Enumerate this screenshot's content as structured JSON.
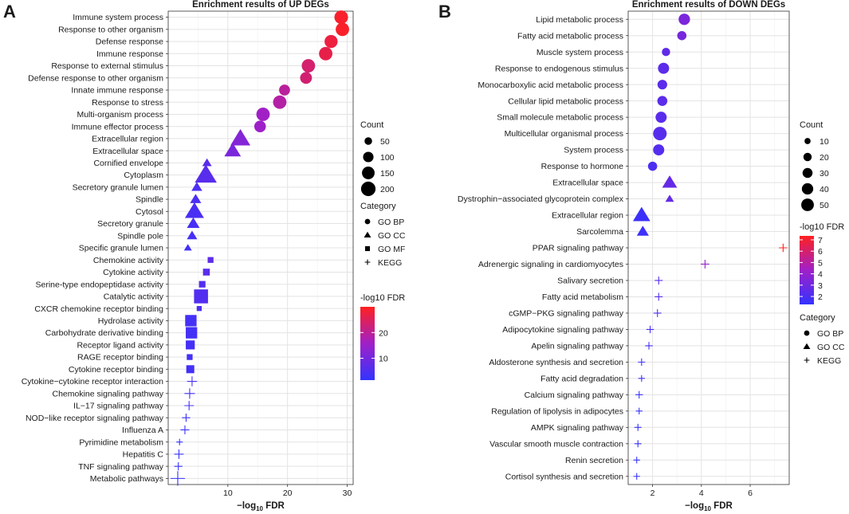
{
  "chart_data": [
    {
      "type": "scatter",
      "panel_label": "A",
      "title": "Enrichment results of UP DEGs",
      "xlabel": "-log10 FDR",
      "xlabel_parts": {
        "prefix": "−log",
        "subscript": "10",
        "suffix": " FDR"
      },
      "xlim": [
        0,
        31
      ],
      "xticks": [
        10,
        20,
        30
      ],
      "xtick_labels": [
        "10",
        "20",
        "30"
      ],
      "categories": [
        {
          "term": "Immune system process",
          "category": "GO BP",
          "x": 29.0,
          "count": 175
        },
        {
          "term": "Response to other organism",
          "category": "GO BP",
          "x": 29.2,
          "count": 170
        },
        {
          "term": "Defense response",
          "category": "GO BP",
          "x": 27.3,
          "count": 160
        },
        {
          "term": "Immune response",
          "category": "GO BP",
          "x": 26.4,
          "count": 170
        },
        {
          "term": "Response to external stimulus",
          "category": "GO BP",
          "x": 23.5,
          "count": 170
        },
        {
          "term": "Defense response to other organism",
          "category": "GO BP",
          "x": 23.1,
          "count": 130
        },
        {
          "term": "Innate immune response",
          "category": "GO BP",
          "x": 19.5,
          "count": 110
        },
        {
          "term": "Response to stress",
          "category": "GO BP",
          "x": 18.7,
          "count": 170
        },
        {
          "term": "Multi-organism process",
          "category": "GO BP",
          "x": 15.9,
          "count": 170
        },
        {
          "term": "Immune effector process",
          "category": "GO BP",
          "x": 15.4,
          "count": 125
        },
        {
          "term": "Extracellular region",
          "category": "GO CC",
          "x": 12.1,
          "count": 220
        },
        {
          "term": "Extracellular space",
          "category": "GO CC",
          "x": 10.8,
          "count": 150
        },
        {
          "term": "Cornified envelope",
          "category": "GO CC",
          "x": 6.5,
          "count": 45
        },
        {
          "term": "Cytoplasm",
          "category": "GO CC",
          "x": 6.3,
          "count": 270
        },
        {
          "term": "Secretory granule lumen",
          "category": "GO CC",
          "x": 4.8,
          "count": 60
        },
        {
          "term": "Spindle",
          "category": "GO CC",
          "x": 4.6,
          "count": 65
        },
        {
          "term": "Cytosol",
          "category": "GO CC",
          "x": 4.4,
          "count": 200
        },
        {
          "term": "Secretory granule",
          "category": "GO CC",
          "x": 4.2,
          "count": 85
        },
        {
          "term": "Spindle pole",
          "category": "GO CC",
          "x": 4.0,
          "count": 55
        },
        {
          "term": "Specific granule lumen",
          "category": "GO CC",
          "x": 3.3,
          "count": 30
        },
        {
          "term": "Chemokine activity",
          "category": "GO MF",
          "x": 7.1,
          "count": 35
        },
        {
          "term": "Cytokine activity",
          "category": "GO MF",
          "x": 6.4,
          "count": 50
        },
        {
          "term": "Serine-type endopeptidase activity",
          "category": "GO MF",
          "x": 5.7,
          "count": 45
        },
        {
          "term": "Catalytic activity",
          "category": "GO MF",
          "x": 5.5,
          "count": 230
        },
        {
          "term": "CXCR chemokine receptor binding",
          "category": "GO MF",
          "x": 5.2,
          "count": 25
        },
        {
          "term": "Hydrolase activity",
          "category": "GO MF",
          "x": 3.8,
          "count": 150
        },
        {
          "term": "Carbohydrate derivative binding",
          "category": "GO MF",
          "x": 3.9,
          "count": 150
        },
        {
          "term": "Receptor ligand activity",
          "category": "GO MF",
          "x": 3.7,
          "count": 90
        },
        {
          "term": "RAGE receptor binding",
          "category": "GO MF",
          "x": 3.6,
          "count": 35
        },
        {
          "term": "Cytokine receptor binding",
          "category": "GO MF",
          "x": 3.7,
          "count": 70
        },
        {
          "term": "Cytokine−cytokine receptor interaction",
          "category": "KEGG",
          "x": 4.0,
          "count": 90
        },
        {
          "term": "Chemokine signaling pathway",
          "category": "KEGG",
          "x": 3.6,
          "count": 100
        },
        {
          "term": "IL−17 signaling pathway",
          "category": "KEGG",
          "x": 3.5,
          "count": 80
        },
        {
          "term": "NOD−like receptor signaling pathway",
          "category": "KEGG",
          "x": 3.0,
          "count": 60
        },
        {
          "term": "Influenza A",
          "category": "KEGG",
          "x": 2.8,
          "count": 70
        },
        {
          "term": "Pyrimidine metabolism",
          "category": "KEGG",
          "x": 1.9,
          "count": 35
        },
        {
          "term": "Hepatitis C",
          "category": "KEGG",
          "x": 1.8,
          "count": 80
        },
        {
          "term": "TNF signaling pathway",
          "category": "KEGG",
          "x": 1.7,
          "count": 60
        },
        {
          "term": "Metabolic pathways",
          "category": "KEGG",
          "x": 1.6,
          "count": 200
        }
      ],
      "size_legend": {
        "title": "Count",
        "values": [
          50,
          100,
          150,
          200
        ]
      },
      "size_range": [
        25,
        270
      ],
      "shape_legend": {
        "title": "Category",
        "items": [
          "GO BP",
          "GO CC",
          "GO MF",
          "KEGG"
        ]
      },
      "color_legend": {
        "title": "-log10 FDR",
        "range": [
          1.5,
          30
        ],
        "ticks": [
          10,
          20
        ],
        "low_color": "#3333ff",
        "mid_color": "#a020c8",
        "high_color": "#ff2020"
      }
    },
    {
      "type": "scatter",
      "panel_label": "B",
      "title": "Enrichment results of DOWN DEGs",
      "xlabel": "-log10 FDR",
      "xlabel_parts": {
        "prefix": "−log",
        "subscript": "10",
        "suffix": " FDR"
      },
      "xlim": [
        1.0,
        7.6
      ],
      "xticks": [
        2,
        4,
        6
      ],
      "xtick_labels": [
        "2",
        "4",
        "6"
      ],
      "categories": [
        {
          "term": "Lipid metabolic process",
          "category": "GO BP",
          "x": 3.3,
          "count": 40
        },
        {
          "term": "Fatty acid metabolic process",
          "category": "GO BP",
          "x": 3.2,
          "count": 25
        },
        {
          "term": "Muscle system process",
          "category": "GO BP",
          "x": 2.55,
          "count": 20
        },
        {
          "term": "Response to endogenous stimulus",
          "category": "GO BP",
          "x": 2.45,
          "count": 38
        },
        {
          "term": "Monocarboxylic acid metabolic process",
          "category": "GO BP",
          "x": 2.4,
          "count": 28
        },
        {
          "term": "Cellular lipid metabolic process",
          "category": "GO BP",
          "x": 2.4,
          "count": 30
        },
        {
          "term": "Small molecule metabolic process",
          "category": "GO BP",
          "x": 2.35,
          "count": 38
        },
        {
          "term": "Multicellular organismal process",
          "category": "GO BP",
          "x": 2.3,
          "count": 58
        },
        {
          "term": "System process",
          "category": "GO BP",
          "x": 2.25,
          "count": 38
        },
        {
          "term": "Response to hormone",
          "category": "GO BP",
          "x": 2.0,
          "count": 25
        },
        {
          "term": "Extracellular space",
          "category": "GO CC",
          "x": 2.7,
          "count": 40
        },
        {
          "term": "Dystrophin−associated glycoprotein complex",
          "category": "GO CC",
          "x": 2.7,
          "count": 12
        },
        {
          "term": "Extracellular region",
          "category": "GO CC",
          "x": 1.55,
          "count": 55
        },
        {
          "term": "Sarcolemma",
          "category": "GO CC",
          "x": 1.6,
          "count": 25
        },
        {
          "term": "PPAR signaling pathway",
          "category": "KEGG",
          "x": 7.35,
          "count": 20
        },
        {
          "term": "Adrenergic signaling in cardiomyocytes",
          "category": "KEGG",
          "x": 4.15,
          "count": 22
        },
        {
          "term": "Salivary secretion",
          "category": "KEGG",
          "x": 2.25,
          "count": 18
        },
        {
          "term": "Fatty acid metabolism",
          "category": "KEGG",
          "x": 2.25,
          "count": 18
        },
        {
          "term": "cGMP−PKG signaling pathway",
          "category": "KEGG",
          "x": 2.2,
          "count": 18
        },
        {
          "term": "Adipocytokine signaling pathway",
          "category": "KEGG",
          "x": 1.9,
          "count": 16
        },
        {
          "term": "Apelin signaling pathway",
          "category": "KEGG",
          "x": 1.85,
          "count": 16
        },
        {
          "term": "Aldosterone synthesis and secretion",
          "category": "KEGG",
          "x": 1.55,
          "count": 15
        },
        {
          "term": "Fatty acid degradation",
          "category": "KEGG",
          "x": 1.55,
          "count": 12
        },
        {
          "term": "Calcium signaling pathway",
          "category": "KEGG",
          "x": 1.45,
          "count": 16
        },
        {
          "term": "Regulation of lipolysis in adipocytes",
          "category": "KEGG",
          "x": 1.45,
          "count": 12
        },
        {
          "term": "AMPK signaling pathway",
          "category": "KEGG",
          "x": 1.4,
          "count": 14
        },
        {
          "term": "Vascular smooth muscle contraction",
          "category": "KEGG",
          "x": 1.4,
          "count": 14
        },
        {
          "term": "Renin secretion",
          "category": "KEGG",
          "x": 1.35,
          "count": 12
        },
        {
          "term": "Cortisol synthesis and secretion",
          "category": "KEGG",
          "x": 1.35,
          "count": 12
        }
      ],
      "size_legend": {
        "title": "Count",
        "values": [
          10,
          20,
          30,
          40,
          50
        ]
      },
      "size_range": [
        8,
        58
      ],
      "shape_legend": {
        "title": "Category",
        "items": [
          "GO BP",
          "GO CC",
          "KEGG"
        ]
      },
      "color_legend": {
        "title": "-log10 FDR",
        "range": [
          1.3,
          7.35
        ],
        "ticks": [
          2,
          3,
          4,
          5,
          6,
          7
        ],
        "low_color": "#3333ff",
        "mid_color": "#a020c8",
        "high_color": "#ff2020"
      }
    }
  ]
}
